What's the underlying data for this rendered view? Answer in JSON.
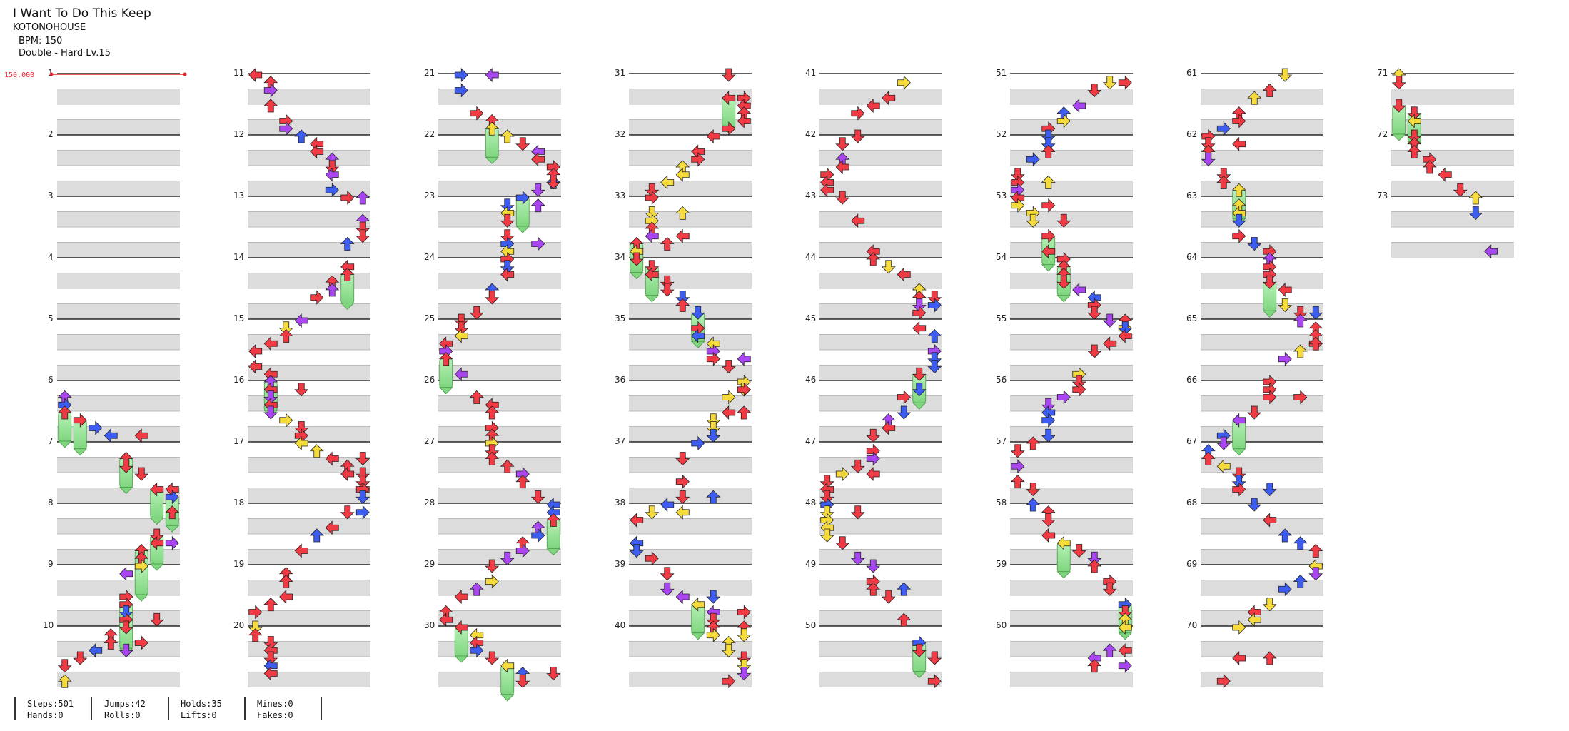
{
  "song": {
    "title": "I Want To Do This Keep",
    "artist": "KOTONOHOUSE",
    "bpm_text": "BPM: 150",
    "difficulty_text": "Double - Hard  Lv.15"
  },
  "bpm_marker": "150.000",
  "colors": {
    "arrow_red": "#f03a44",
    "arrow_blue": "#3d5cf0",
    "arrow_purple": "#a946f2",
    "arrow_yellow": "#f5dc3c",
    "hold_green": "#8fe08f",
    "bpm_red": "#e8202f",
    "lane_grey": "#dcdcdc"
  },
  "chart": {
    "lanes": 8,
    "measure_numbers_col1": [
      "1",
      "2",
      "3",
      "4",
      "5",
      "6",
      "7",
      "8",
      "9",
      "10"
    ],
    "total_measures": 73
  },
  "stats": {
    "steps": "Steps:501",
    "hands": "Hands:0",
    "jumps": "Jumps:42",
    "rolls": "Rolls:0",
    "holds": "Holds:35",
    "lifts": "Lifts:0",
    "mines": "Mines:0",
    "fakes": "Fakes:0"
  }
}
